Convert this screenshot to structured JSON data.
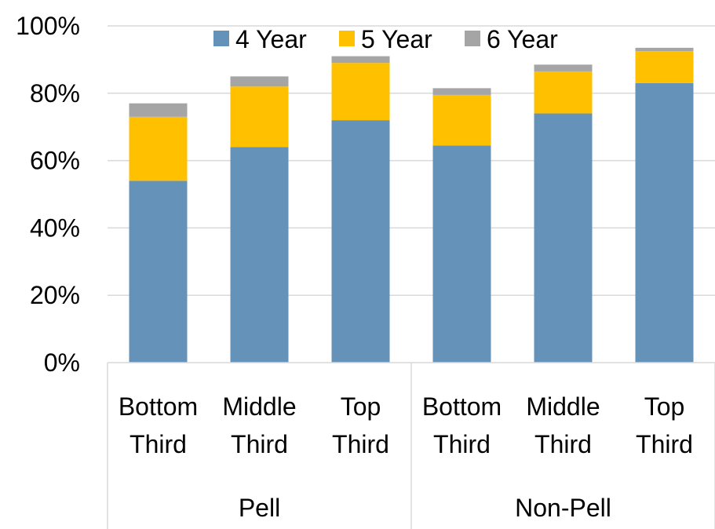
{
  "chart_data": {
    "type": "bar",
    "stacked": true,
    "categories": [
      "Bottom Third",
      "Middle Third",
      "Top Third",
      "Bottom Third",
      "Middle Third",
      "Top Third"
    ],
    "category_lines": [
      [
        "Bottom",
        "Third"
      ],
      [
        "Middle",
        "Third"
      ],
      [
        "Top",
        "Third"
      ],
      [
        "Bottom",
        "Third"
      ],
      [
        "Middle",
        "Third"
      ],
      [
        "Top",
        "Third"
      ]
    ],
    "groups": [
      {
        "label": "Pell",
        "size": 3
      },
      {
        "label": "Non-Pell",
        "size": 3
      }
    ],
    "series": [
      {
        "name": "4 Year",
        "color": "#6592b8",
        "values": [
          54,
          64,
          72,
          64.5,
          74,
          83
        ]
      },
      {
        "name": "5 Year",
        "color": "#ffc000",
        "values": [
          19,
          18,
          17,
          15,
          12.5,
          9.5
        ]
      },
      {
        "name": "6 Year",
        "color": "#a5a5a5",
        "values": [
          4,
          3,
          2,
          2,
          2,
          1
        ]
      }
    ],
    "y_ticks": [
      "0%",
      "20%",
      "40%",
      "60%",
      "80%",
      "100%"
    ],
    "ylim": [
      0,
      100
    ],
    "grid": true,
    "legend_position": "top"
  }
}
